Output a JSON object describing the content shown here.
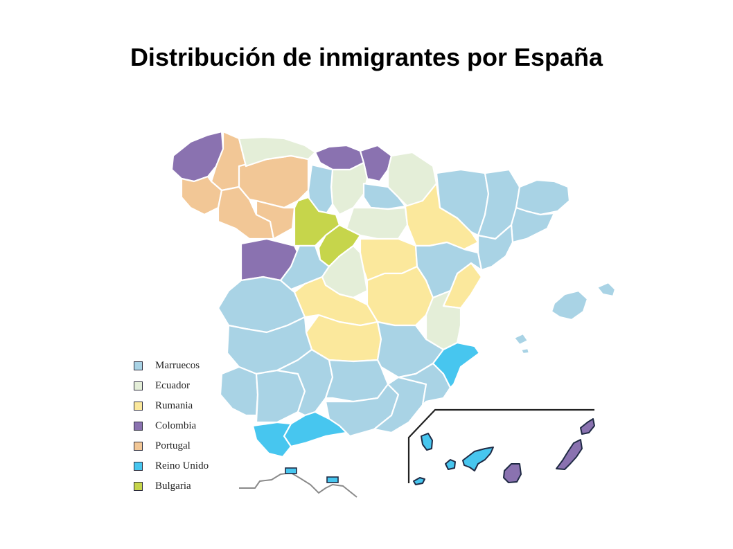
{
  "title": "Distribución de inmigrantes por España",
  "colors": {
    "marruecos": "#a9d3e5",
    "ecuador": "#e4eed8",
    "rumania": "#fbe89c",
    "colombia": "#8a72b0",
    "portugal": "#f2c796",
    "reino_unido": "#47c6ef",
    "bulgaria": "#c6d54b"
  },
  "legend": [
    {
      "label": "Marruecos",
      "color": "#a9d3e5"
    },
    {
      "label": "Ecuador",
      "color": "#e4eed8"
    },
    {
      "label": "Rumania",
      "color": "#fbe89c"
    },
    {
      "label": "Colombia",
      "color": "#8a72b0"
    },
    {
      "label": "Portugal",
      "color": "#f2c796"
    },
    {
      "label": "Reino Unido",
      "color": "#47c6ef"
    },
    {
      "label": "Bulgaria",
      "color": "#c6d54b"
    }
  ]
}
